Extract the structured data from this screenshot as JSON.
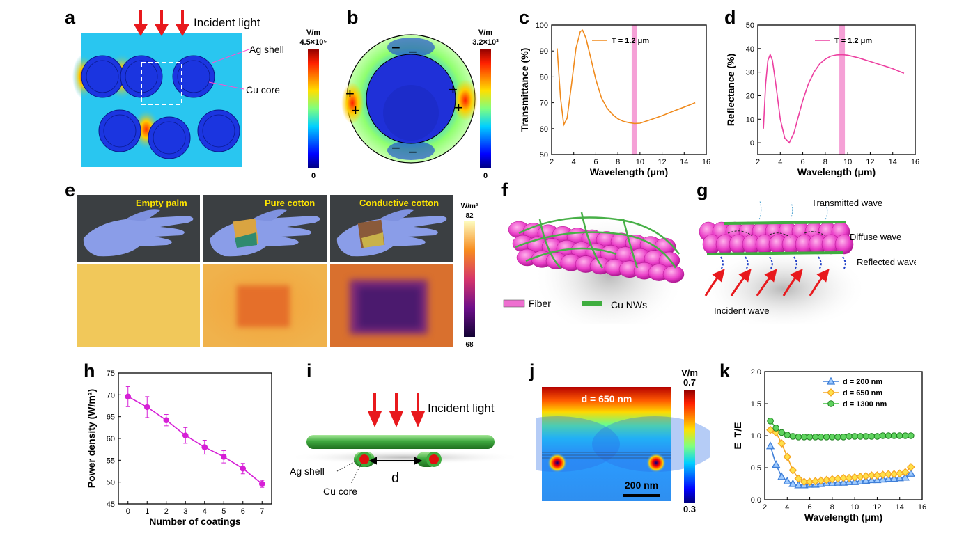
{
  "panels": {
    "a": {
      "label": "a",
      "incident": "Incident light",
      "ag_shell": "Ag shell",
      "cu_core": "Cu core",
      "cb_unit": "V/m",
      "cb_max": "4.5×10⁵",
      "cb_min": "0"
    },
    "b": {
      "label": "b",
      "cb_unit": "V/m",
      "cb_max": "3.2×10³",
      "cb_min": "0",
      "plus": "+",
      "minus": "−"
    },
    "c": {
      "label": "c"
    },
    "d": {
      "label": "d"
    },
    "e": {
      "label": "e",
      "captions": [
        "Empty palm",
        "Pure cotton",
        "Conductive cotton"
      ],
      "cb_unit": "W/m²",
      "cb_max": "82",
      "cb_min": "68"
    },
    "f": {
      "label": "f",
      "fiber": "Fiber",
      "cu_nws": "Cu NWs"
    },
    "g": {
      "label": "g",
      "transmitted": "Transmitted wave",
      "diffuse": "Diffuse wave",
      "reflected": "Reflected wave",
      "incident": "Incident wave"
    },
    "h": {
      "label": "h"
    },
    "i": {
      "label": "i",
      "incident": "Incident light",
      "ag_shell": "Ag shell",
      "cu_core": "Cu core",
      "d": "d"
    },
    "j": {
      "label": "j",
      "title": "d = 650 nm",
      "scale": "200 nm",
      "cb_unit": "V/m",
      "cb_max": "0.7",
      "cb_min": "0.3"
    },
    "k": {
      "label": "k"
    }
  },
  "chart_data": [
    {
      "panel": "c",
      "type": "line",
      "xlabel": "Wavelength (μm)",
      "ylabel": "Transmittance (%)",
      "xlim": [
        2,
        16
      ],
      "ylim": [
        50,
        100
      ],
      "xticks": [
        2,
        4,
        6,
        8,
        10,
        12,
        14,
        16
      ],
      "yticks": [
        50,
        60,
        70,
        80,
        90,
        100
      ],
      "highlight_x": 9.5,
      "series": [
        {
          "name": "T = 1.2 μm",
          "color": "#f08a1c",
          "x": [
            2.5,
            2.8,
            3.1,
            3.4,
            3.8,
            4.2,
            4.6,
            4.8,
            5.1,
            5.5,
            6,
            6.5,
            7,
            7.5,
            8,
            8.5,
            9,
            9.5,
            10,
            11,
            12,
            13,
            14,
            15
          ],
          "y": [
            91,
            72,
            61.5,
            64,
            77,
            91,
            97.5,
            98,
            95,
            88,
            79,
            72,
            68,
            65.5,
            63.8,
            62.8,
            62.3,
            62,
            62.1,
            63.5,
            65,
            66.7,
            68.3,
            70
          ]
        }
      ]
    },
    {
      "panel": "d",
      "type": "line",
      "xlabel": "Wavelength (μm)",
      "ylabel": "Reflectance (%)",
      "xlim": [
        2,
        16
      ],
      "ylim": [
        -5,
        50
      ],
      "xticks": [
        2,
        4,
        6,
        8,
        10,
        12,
        14,
        16
      ],
      "yticks": [
        0,
        10,
        20,
        30,
        40,
        50
      ],
      "highlight_x": 9.5,
      "series": [
        {
          "name": "T = 1.2 μm",
          "color": "#ec3fa0",
          "x": [
            2.5,
            2.7,
            2.9,
            3.1,
            3.3,
            3.6,
            4.0,
            4.4,
            4.8,
            5.2,
            5.6,
            6,
            6.5,
            7,
            7.5,
            8,
            8.5,
            9,
            9.5,
            10,
            11,
            12,
            13,
            14,
            15
          ],
          "y": [
            6,
            25,
            35,
            37.5,
            35,
            25,
            10,
            2,
            0,
            4,
            11,
            18,
            25,
            30,
            33.5,
            35.5,
            36.8,
            37.3,
            37.4,
            37.2,
            36,
            34.5,
            33,
            31.5,
            29.5
          ]
        }
      ]
    },
    {
      "panel": "h",
      "type": "line",
      "xlabel": "Number of coatings",
      "ylabel": "Power density (W/m²)",
      "xlim": [
        -0.5,
        7.5
      ],
      "ylim": [
        45,
        75
      ],
      "xticks": [
        0,
        1,
        2,
        3,
        4,
        5,
        6,
        7
      ],
      "yticks": [
        45,
        50,
        55,
        60,
        65,
        70,
        75
      ],
      "series": [
        {
          "color": "#d61fd6",
          "x": [
            0,
            1,
            2,
            3,
            4,
            5,
            6,
            7
          ],
          "y": [
            69.6,
            67.2,
            64.2,
            60.7,
            58,
            55.8,
            53.1,
            49.6
          ],
          "err": [
            2.3,
            2.4,
            1.3,
            1.8,
            1.6,
            1.4,
            1.2,
            0.8
          ]
        }
      ]
    },
    {
      "panel": "k",
      "type": "line",
      "xlabel": "Wavelength (μm)",
      "ylabel": "E_T/E",
      "xlim": [
        2,
        16
      ],
      "ylim": [
        0,
        2
      ],
      "xticks": [
        2,
        4,
        6,
        8,
        10,
        12,
        14,
        16
      ],
      "yticks": [
        0.0,
        0.5,
        1.0,
        1.5,
        2.0
      ],
      "x": [
        2.5,
        3,
        3.5,
        4,
        4.5,
        5,
        5.5,
        6,
        6.5,
        7,
        7.5,
        8,
        8.5,
        9,
        9.5,
        10,
        10.5,
        11,
        11.5,
        12,
        12.5,
        13,
        13.5,
        14,
        14.5,
        15
      ],
      "series": [
        {
          "name": "d = 200 nm",
          "color": "#3f7fd8",
          "marker": "triangle",
          "y": [
            0.84,
            0.55,
            0.36,
            0.29,
            0.25,
            0.23,
            0.23,
            0.24,
            0.24,
            0.25,
            0.26,
            0.26,
            0.27,
            0.27,
            0.28,
            0.28,
            0.29,
            0.3,
            0.31,
            0.31,
            0.32,
            0.33,
            0.33,
            0.34,
            0.35,
            0.41
          ]
        },
        {
          "name": "d = 650 nm",
          "color": "#f5a623",
          "marker": "diamond",
          "y": [
            1.09,
            1.05,
            0.88,
            0.67,
            0.46,
            0.33,
            0.28,
            0.28,
            0.29,
            0.3,
            0.31,
            0.32,
            0.33,
            0.34,
            0.34,
            0.35,
            0.36,
            0.37,
            0.38,
            0.38,
            0.39,
            0.4,
            0.4,
            0.41,
            0.43,
            0.51
          ]
        },
        {
          "name": "d = 1300 nm",
          "color": "#3fbf3f",
          "marker": "circle",
          "y": [
            1.23,
            1.12,
            1.05,
            1.01,
            0.99,
            0.98,
            0.98,
            0.98,
            0.98,
            0.98,
            0.98,
            0.98,
            0.98,
            0.98,
            0.99,
            0.99,
            0.99,
            0.99,
            0.99,
            0.99,
            1.0,
            1.0,
            1.0,
            1.0,
            1.0,
            1.0
          ]
        }
      ]
    }
  ]
}
